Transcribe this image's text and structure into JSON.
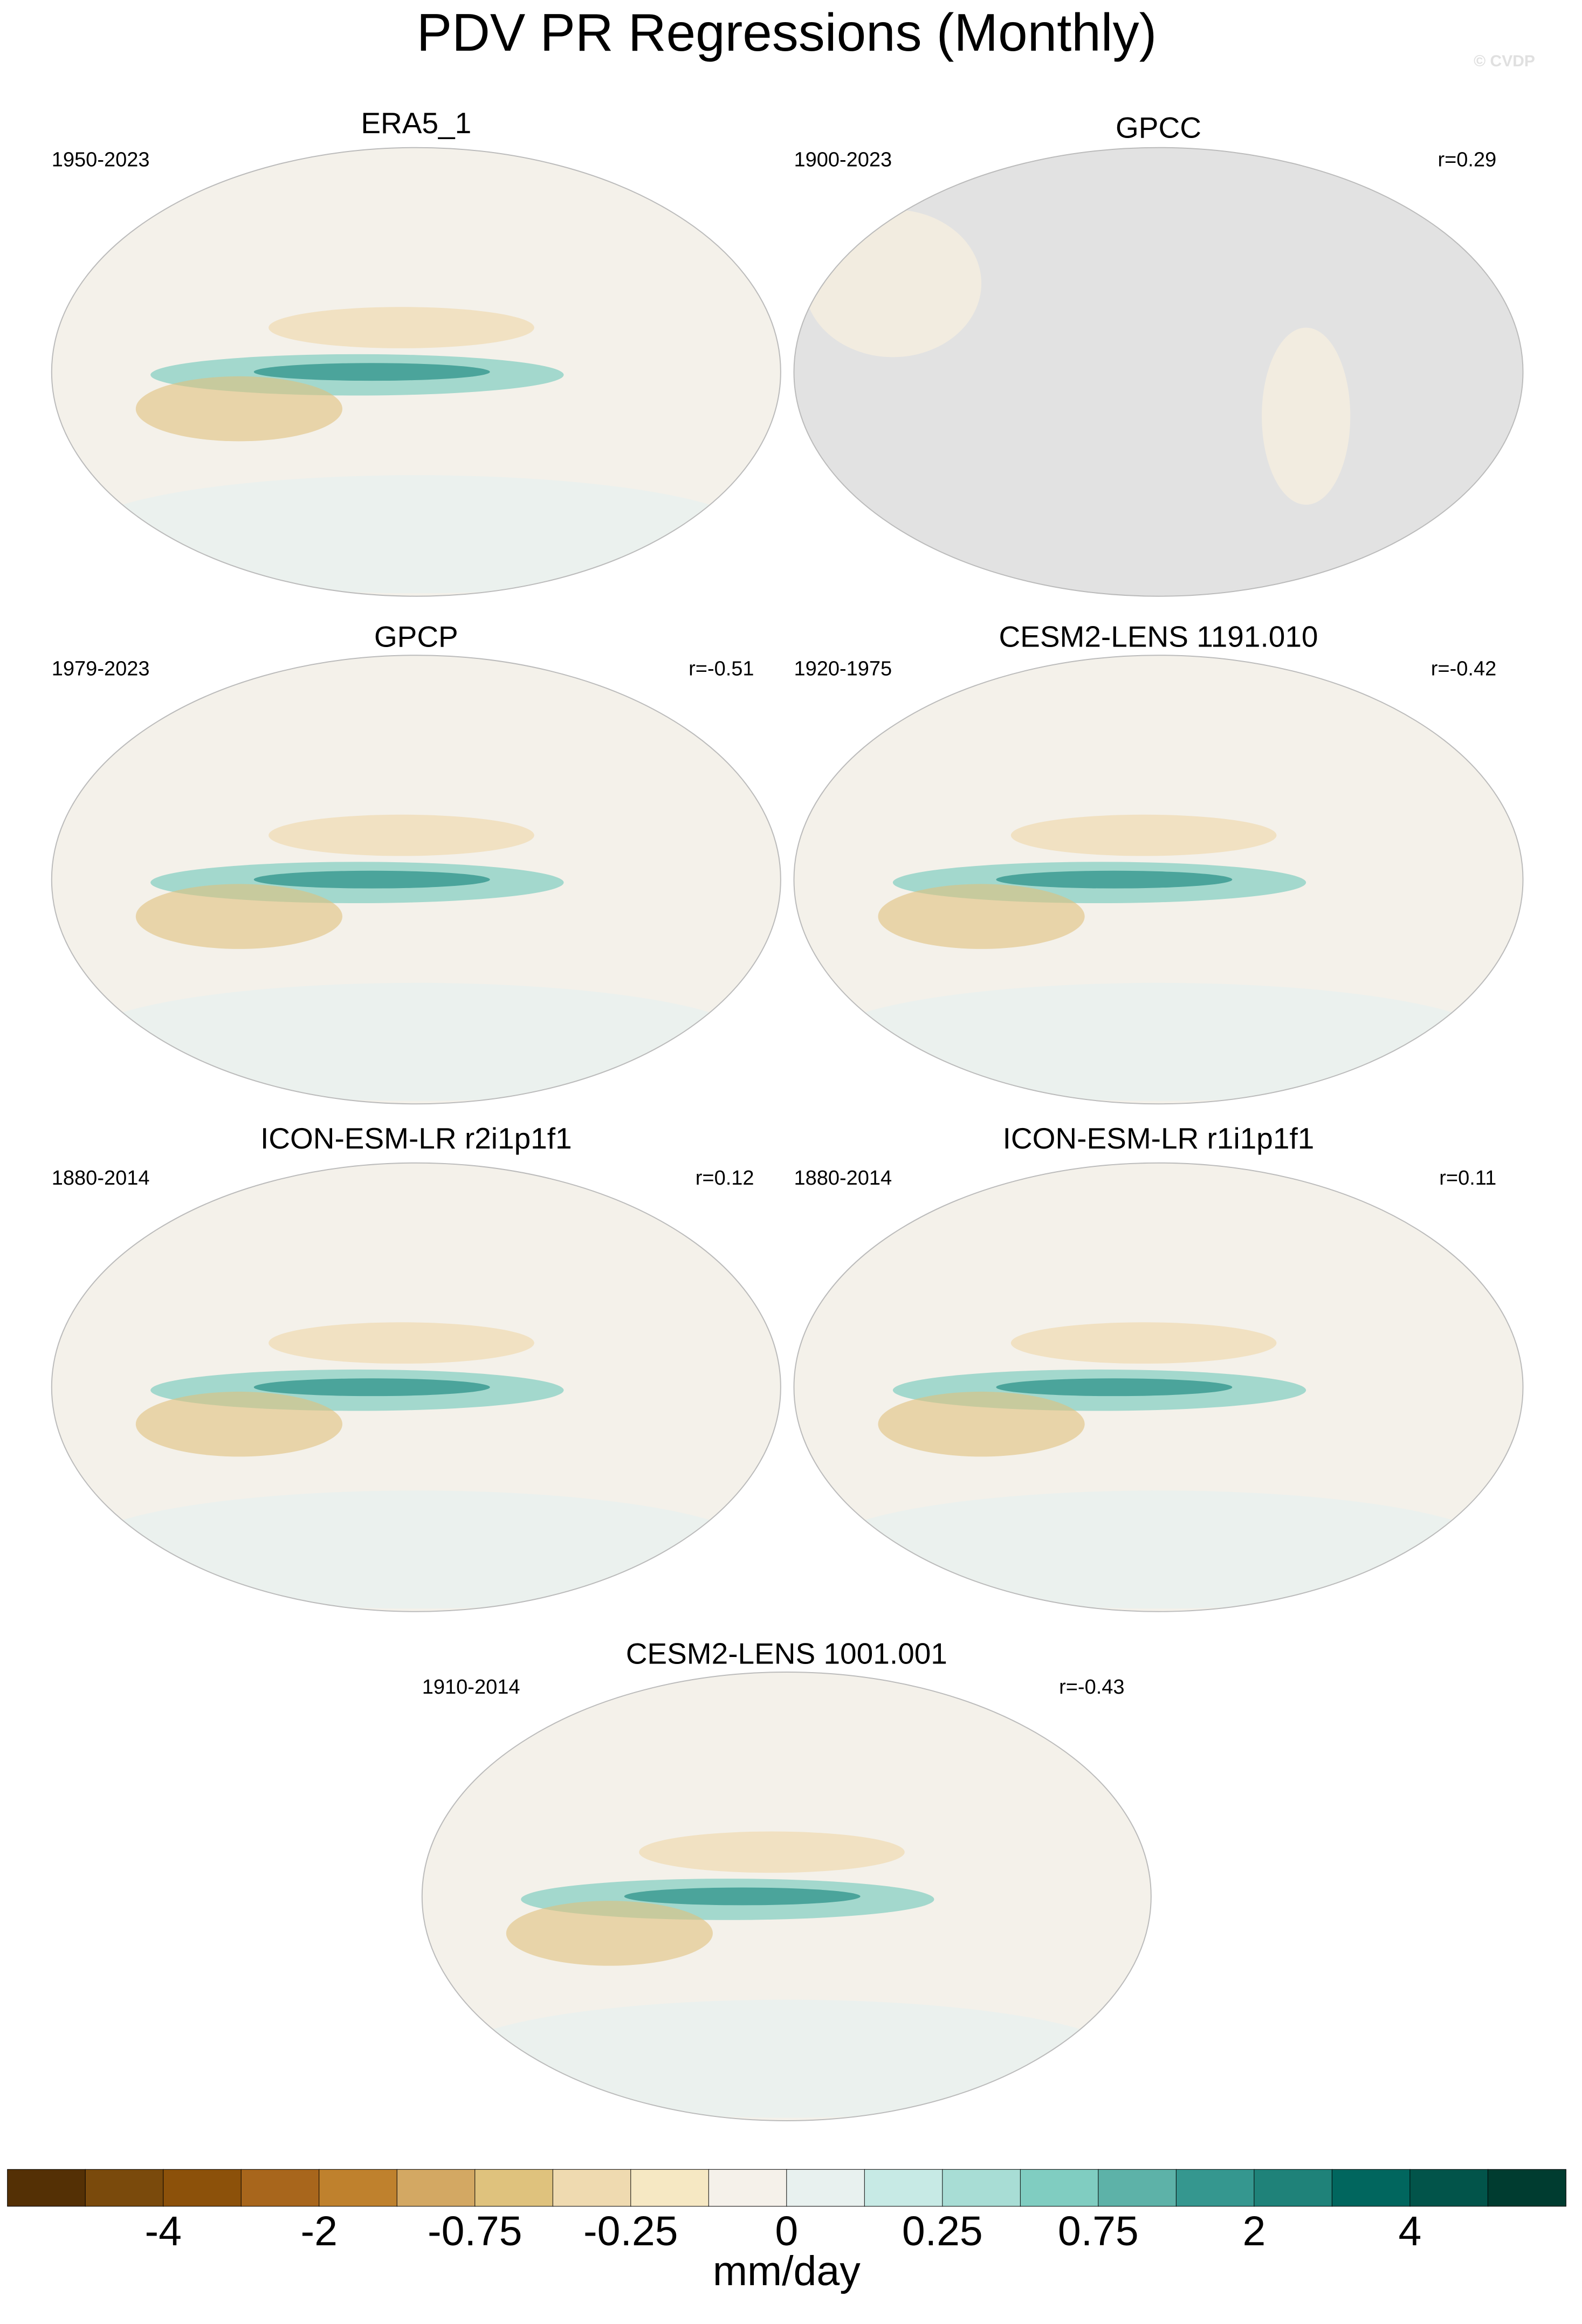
{
  "title": "PDV PR Regressions (Monthly)",
  "watermark": "© CVDP",
  "panels": [
    {
      "title": "ERA5_1",
      "years": "1950-2023"
    },
    {
      "title": "GPCC",
      "years": "1900-2023",
      "r": "r=0.29"
    },
    {
      "title": "GPCP",
      "years": "1979-2023",
      "r": "r=-0.51"
    },
    {
      "title": "CESM2-LENS 1191.010",
      "years": "1920-1975",
      "r": "r=-0.42"
    },
    {
      "title": "ICON-ESM-LR r2i1p1f1",
      "years": "1880-2014",
      "r": "r=0.12"
    },
    {
      "title": "ICON-ESM-LR r1i1p1f1",
      "years": "1880-2014",
      "r": "r=0.11"
    },
    {
      "title": "CESM2-LENS 1001.001",
      "years": "1910-2014",
      "r": "r=-0.43"
    }
  ],
  "colorbar": {
    "colors": [
      "#543005",
      "#7a4a0c",
      "#8c510a",
      "#a8661c",
      "#bf812d",
      "#d3a863",
      "#dfc27d",
      "#efdab0",
      "#f6e8c3",
      "#f5f1ea",
      "#e8f1ef",
      "#c7eae5",
      "#a8ddd5",
      "#80cdc1",
      "#5db2a8",
      "#35978f",
      "#1f8279",
      "#01665e",
      "#02544a",
      "#003c30"
    ],
    "ticks": [
      -4,
      -2,
      -0.75,
      -0.25,
      0,
      0.25,
      0.75,
      2,
      4
    ],
    "label": "mm/day"
  }
}
